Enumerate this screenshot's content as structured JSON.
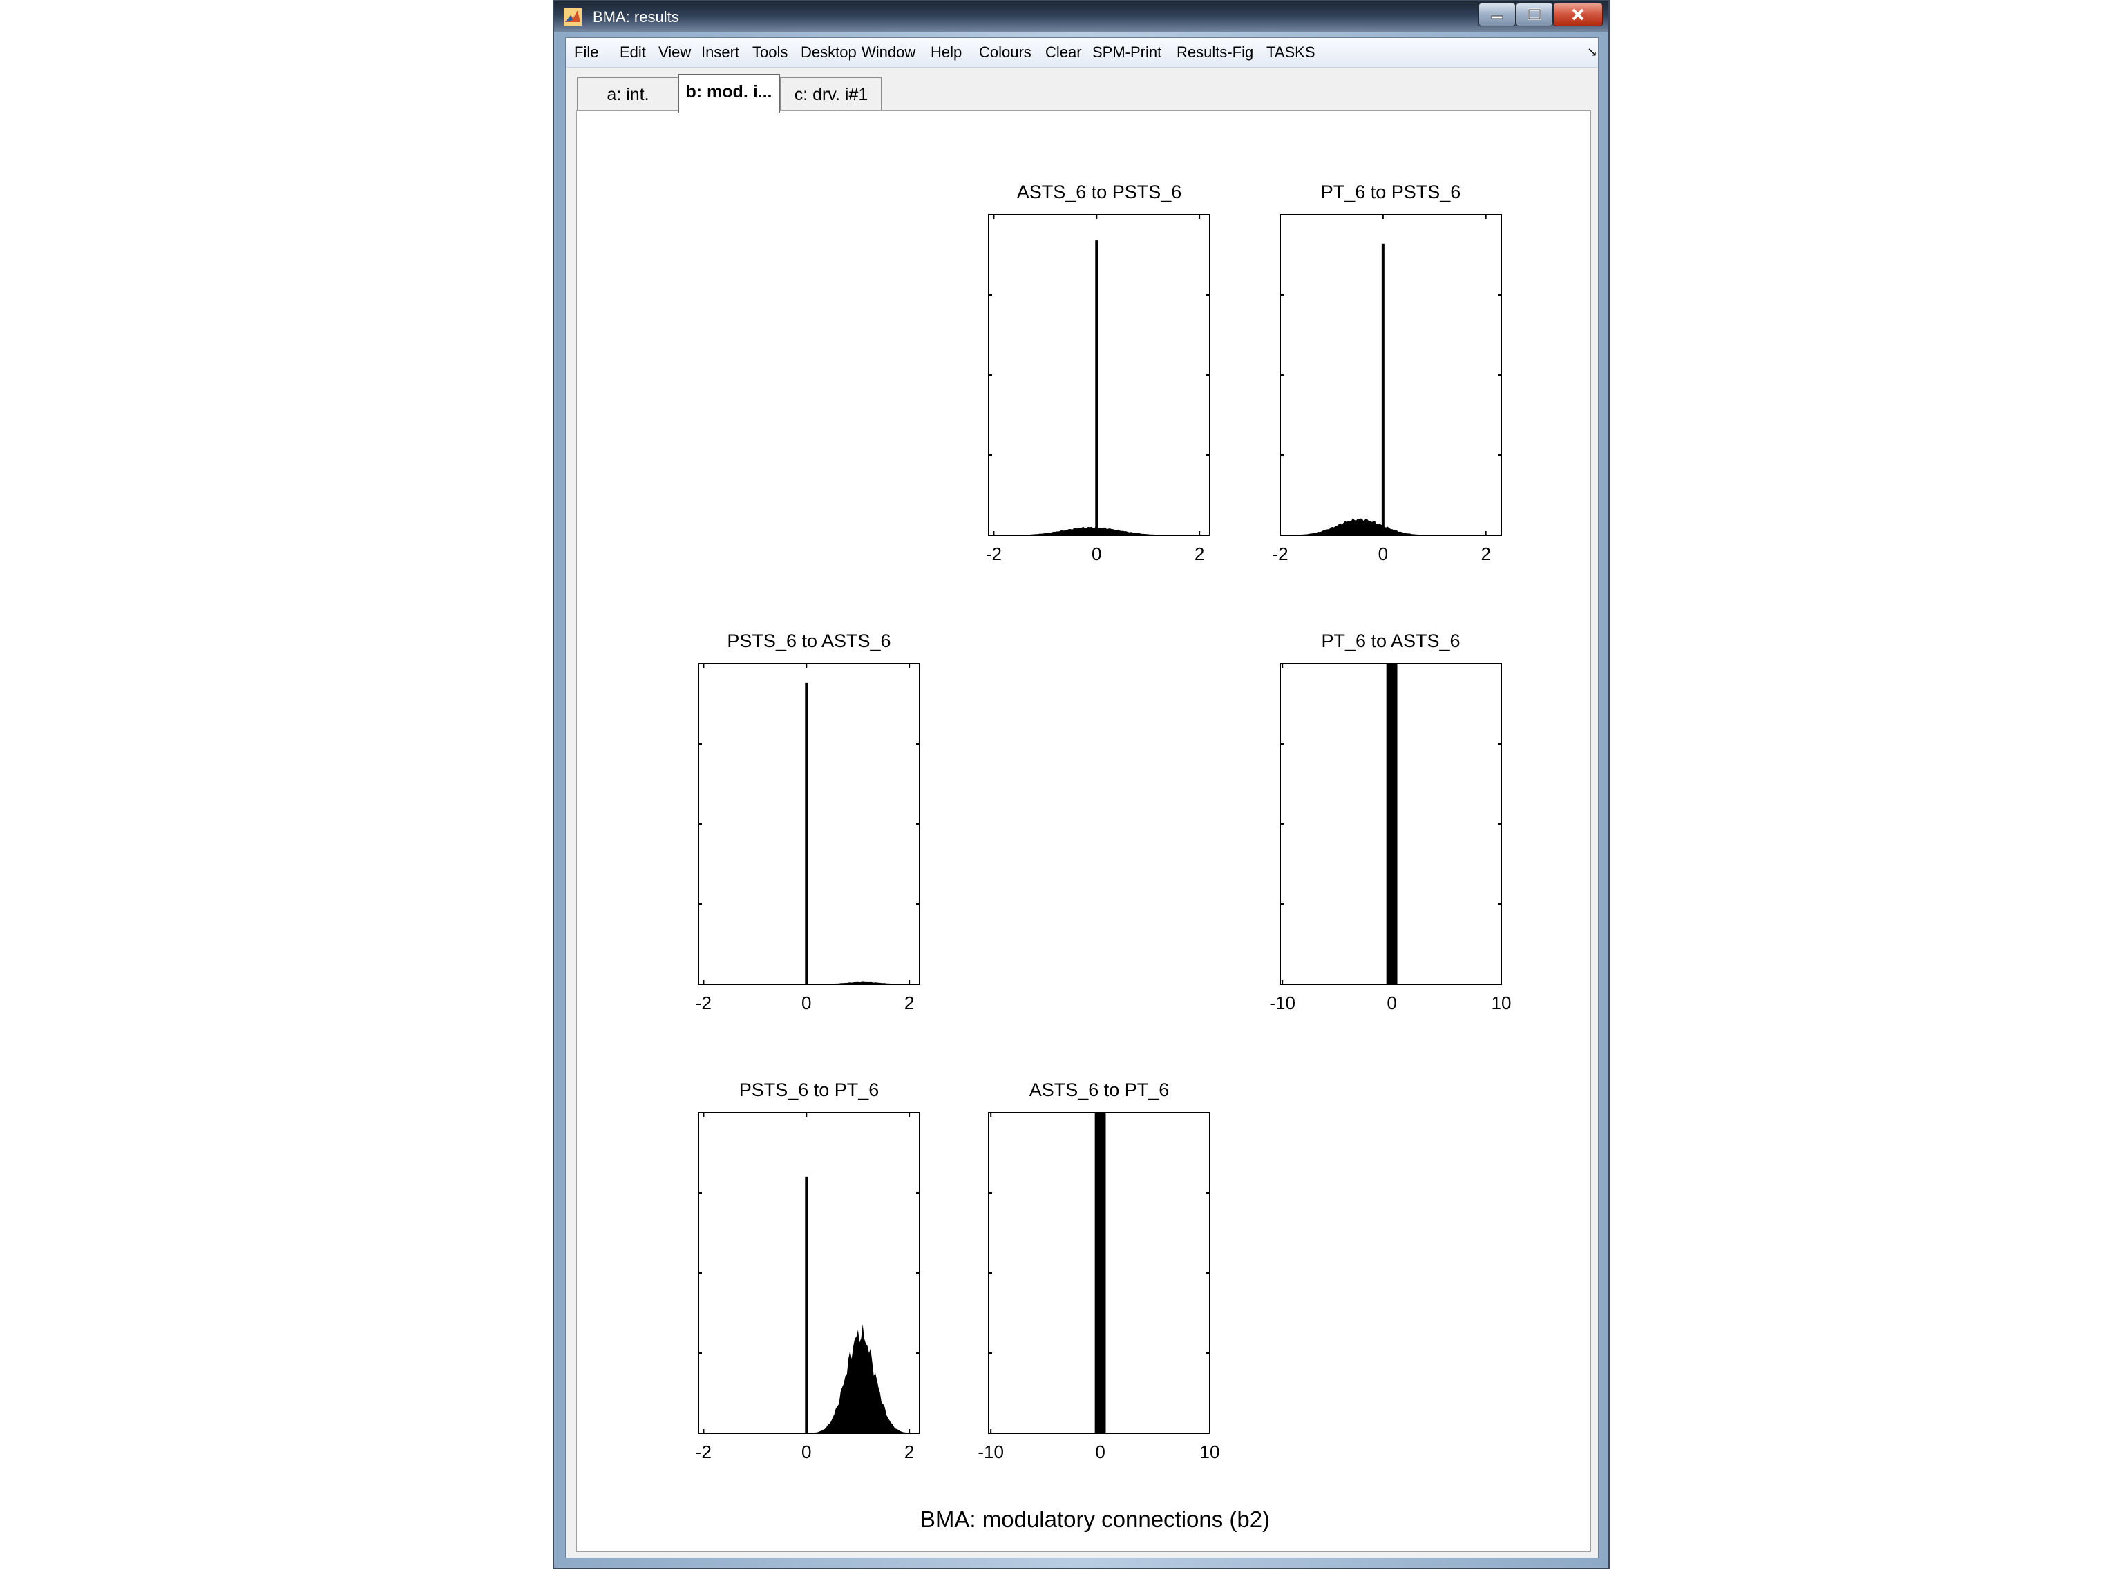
{
  "window": {
    "title": "BMA: results",
    "controls": {
      "minimize_icon": "minimize-icon",
      "maximize_icon": "maximize-icon",
      "close_icon": "close-icon"
    }
  },
  "menubar": {
    "items": [
      "File",
      "Edit",
      "View",
      "Insert",
      "Tools",
      "Desktop",
      "Window",
      "Help",
      "Colours",
      "Clear",
      "SPM-Print",
      "Results-Fig",
      "TASKS"
    ]
  },
  "tabs": [
    {
      "label": "a: int."
    },
    {
      "label": "b: mod. i..."
    },
    {
      "label": "c: drv. i#1"
    }
  ],
  "figure": {
    "title": "BMA: modulatory connections (b2)"
  },
  "chart_data": [
    {
      "type": "bar",
      "kind": "histogram",
      "title": "ASTS_6 to PSTS_6",
      "xlim": [
        -2.1,
        2.2
      ],
      "xticks": [
        -2,
        0,
        2
      ],
      "spike": {
        "x": 0,
        "height": 0.92
      },
      "distribution": {
        "mean": -0.1,
        "sd": 0.55,
        "peak": 0.025
      }
    },
    {
      "type": "bar",
      "kind": "histogram",
      "title": "PT_6 to PSTS_6",
      "xlim": [
        -2.0,
        2.3
      ],
      "xticks": [
        -2,
        0,
        2
      ],
      "spike": {
        "x": 0,
        "height": 0.91
      },
      "distribution": {
        "mean": -0.45,
        "sd": 0.45,
        "peak": 0.05
      }
    },
    {
      "type": "bar",
      "kind": "histogram",
      "title": "PSTS_6 to ASTS_6",
      "xlim": [
        -2.1,
        2.2
      ],
      "xticks": [
        -2,
        0,
        2
      ],
      "spike": {
        "x": 0,
        "height": 0.94
      },
      "distribution": {
        "mean": 1.1,
        "sd": 0.35,
        "peak": 0.007
      }
    },
    {
      "type": "bar",
      "kind": "histogram",
      "title": "PT_6 to ASTS_6",
      "xlim": [
        -10.2,
        10
      ],
      "xticks": [
        -10,
        0,
        10
      ],
      "bar": {
        "x0": -0.5,
        "x1": 0.5,
        "height": 1.0
      }
    },
    {
      "type": "bar",
      "kind": "histogram",
      "title": "PSTS_6 to PT_6",
      "xlim": [
        -2.1,
        2.2
      ],
      "xticks": [
        -2,
        0,
        2
      ],
      "spike": {
        "x": 0,
        "height": 0.8
      },
      "distribution": {
        "mean": 1.05,
        "sd": 0.28,
        "peak": 0.31
      }
    },
    {
      "type": "bar",
      "kind": "histogram",
      "title": "ASTS_6 to PT_6",
      "xlim": [
        -10.2,
        10
      ],
      "xticks": [
        -10,
        0,
        10
      ],
      "bar": {
        "x0": -0.5,
        "x1": 0.5,
        "height": 1.0
      }
    }
  ]
}
